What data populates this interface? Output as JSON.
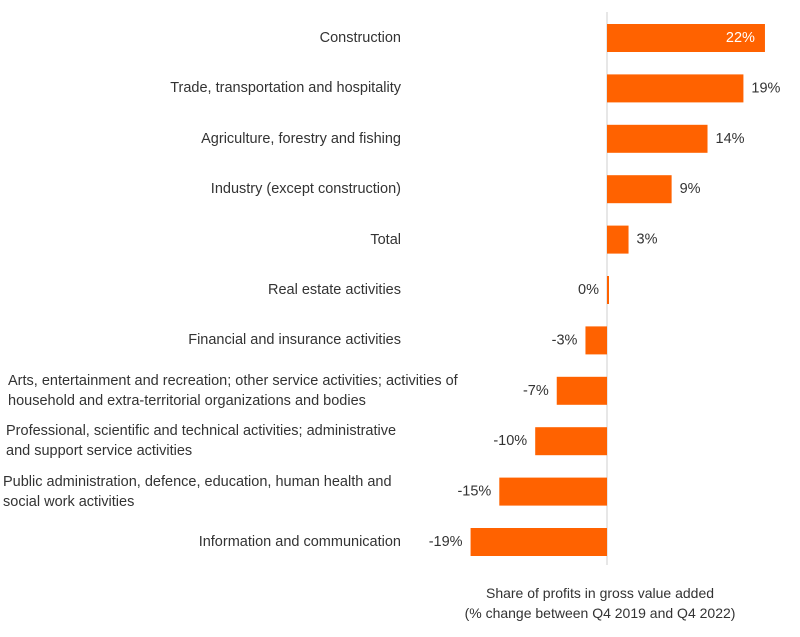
{
  "chart_data": {
    "type": "bar",
    "orientation": "horizontal",
    "categories": [
      "Construction",
      "Trade, transportation and hospitality",
      "Agriculture, forestry and fishing",
      "Industry (except construction)",
      "Total",
      "Real estate activities",
      "Financial and insurance activities",
      "Arts, entertainment and recreation; other service activities; activities of household and extra-territorial organizations and bodies",
      "Professional, scientific and technical activities; administrative and support service activities",
      "Public administration, defence, education, human health and social work activities",
      "Information and communication"
    ],
    "values": [
      22,
      19,
      14,
      9,
      3,
      0,
      -3,
      -7,
      -10,
      -15,
      -19
    ],
    "data_labels": [
      "22%",
      "19%",
      "14%",
      "9%",
      "3%",
      "0%",
      "-3%",
      "-7%",
      "-10%",
      "-15%",
      "-19%"
    ],
    "title": "",
    "xlabel": "Share of profits in gross value added (% change between Q4 2019 and Q4 2022)",
    "xlabel_lines": [
      "Share of profits in gross value added",
      "(% change between Q4 2019 and Q4 2022)"
    ],
    "ylabel": "",
    "xlim": [
      -20,
      24
    ],
    "grid": false,
    "bar_color": "#FF6200"
  }
}
